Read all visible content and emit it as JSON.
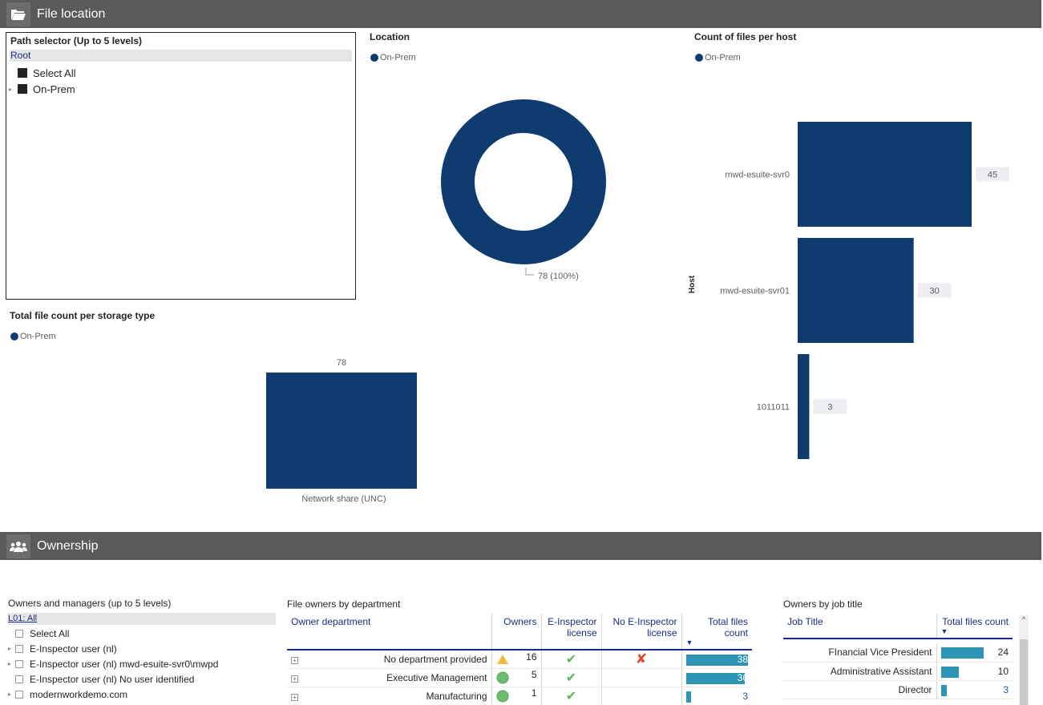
{
  "sections": {
    "file_location": "File location",
    "ownership": "Ownership"
  },
  "colors": {
    "bar": "#0e3c6e",
    "table_bar": "#2e94b4",
    "header_bg": "#5a5a5a"
  },
  "icons": {
    "file_location": "folder-open-icon",
    "ownership": "users-icon"
  },
  "path_selector": {
    "title": "Path selector (Up to 5 levels)",
    "root": "Root",
    "items": [
      "Select All",
      "On-Prem"
    ]
  },
  "location": {
    "title": "Location",
    "legend": "On-Prem",
    "label": "78 (100%)"
  },
  "files_per_host": {
    "title": "Count of files per host",
    "legend": "On-Prem",
    "axis_label": "Host"
  },
  "storage": {
    "title": "Total file count per storage type",
    "legend": "On-Prem"
  },
  "chart_data": [
    {
      "type": "pie",
      "title": "Location",
      "categories": [
        "On-Prem"
      ],
      "values": [
        78
      ],
      "data_labels": [
        "78 (100%)"
      ]
    },
    {
      "type": "bar",
      "title": "Count of files per host",
      "ylabel": "Host",
      "categories": [
        "mwd-esuite-svr0",
        "mwd-esuite-svr01",
        "1011011"
      ],
      "values": [
        45,
        30,
        3
      ],
      "xlim": [
        0,
        45
      ]
    },
    {
      "type": "bar",
      "title": "Total file count per storage type",
      "categories": [
        "Network share (UNC)"
      ],
      "values": [
        78
      ],
      "ylim": [
        0,
        78
      ]
    }
  ],
  "owners_slicer": {
    "title": "Owners and managers (up to 5 levels)",
    "level": "L01: All",
    "items": [
      {
        "label": "Select All",
        "arrow": false
      },
      {
        "label": "E-Inspector user (nl)",
        "arrow": true
      },
      {
        "label": "E-Inspector user (nl) mwd-esuite-svr0\\mwpd",
        "arrow": true
      },
      {
        "label": "E-Inspector user (nl) No user identified",
        "arrow": false
      },
      {
        "label": "modernworkdemo.com",
        "arrow": true
      }
    ]
  },
  "dept_table": {
    "title": "File owners by department",
    "headers": {
      "dept": "Owner department",
      "owners": "Owners",
      "lic": "E-Inspector license",
      "nolic": "No E-Inspector license",
      "total": "Total files count"
    },
    "rows": [
      {
        "dept": "No department provided",
        "status": "warning-icon",
        "owners": "16",
        "lic": "✔",
        "nolic": "✘",
        "total": "38",
        "total_fraction": 1.0
      },
      {
        "dept": "Executive Management",
        "status": "green-circle-icon",
        "owners": "5",
        "lic": "✔",
        "nolic": "",
        "total": "36",
        "total_fraction": 0.95
      },
      {
        "dept": "Manufacturing",
        "status": "green-circle-icon",
        "owners": "1",
        "lic": "✔",
        "nolic": "",
        "total": "3",
        "total_fraction": 0.08
      }
    ]
  },
  "job_table": {
    "title": "Owners by job title",
    "headers": {
      "job": "Job Title",
      "total": "Total files count"
    },
    "rows": [
      {
        "job": "FInancial Vice President",
        "total": "24",
        "total_fraction": 1.0
      },
      {
        "job": "Administrative Assistant",
        "total": "10",
        "total_fraction": 0.42
      },
      {
        "job": "Director",
        "total": "3",
        "total_fraction": 0.13
      }
    ]
  }
}
